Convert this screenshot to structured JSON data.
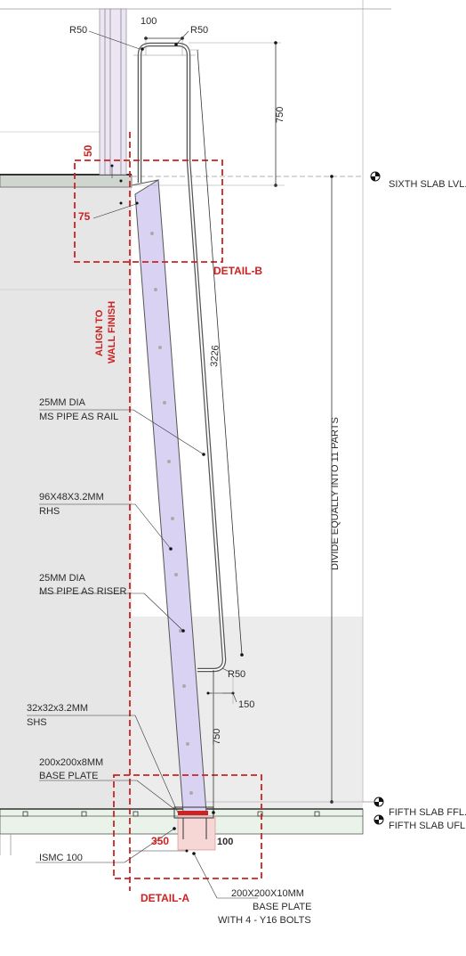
{
  "dimensions": {
    "top_width": "100",
    "r50_top_left": "R50",
    "r50_top_right": "R50",
    "top_extension": "750",
    "rail_length": "3226",
    "r50_bottom": "R50",
    "bottom_offset": "150",
    "bottom_extension": "750"
  },
  "levels": {
    "sixth_slab": "SIXTH SLAB LVL.",
    "fifth_slab_ffl": "FIFTH SLAB FFL.",
    "fifth_slab_ufl": "FIFTH SLAB UFL."
  },
  "details": {
    "detail_a": "DETAIL-A",
    "detail_b": "DETAIL-B",
    "dim_50": "50",
    "dim_75": "75",
    "dim_350": "350",
    "dim_100": "100",
    "align_line1": "ALIGN TO",
    "align_line2": "WALL FINISH"
  },
  "divide_note": "DIVIDE EQUALLY INTO 11 PARTS",
  "labels": {
    "rail": {
      "line1": "25MM DIA",
      "line2": "MS PIPE AS RAIL"
    },
    "rhs": {
      "line1": "96X48X3.2MM",
      "line2": "RHS"
    },
    "riser": {
      "line1": "25MM DIA",
      "line2": "MS PIPE AS RISER"
    },
    "shs": {
      "line1": "32x32x3.2MM",
      "line2": "SHS"
    },
    "base_plate": {
      "line1": "200x200x8MM",
      "line2": "BASE PLATE"
    },
    "ismc": "ISMC 100",
    "base_plate_2": {
      "line1": "200X200X10MM",
      "line2": "BASE PLATE",
      "line3": "WITH 4 - Y16 BOLTS"
    }
  },
  "colors": {
    "stringer_fill": "#d9d2f2",
    "wall_fill": "#e6e6e6",
    "slab_fill": "#e9f3e9",
    "detail_red": "#cc2222",
    "base_pink": "#f7d6d6"
  }
}
